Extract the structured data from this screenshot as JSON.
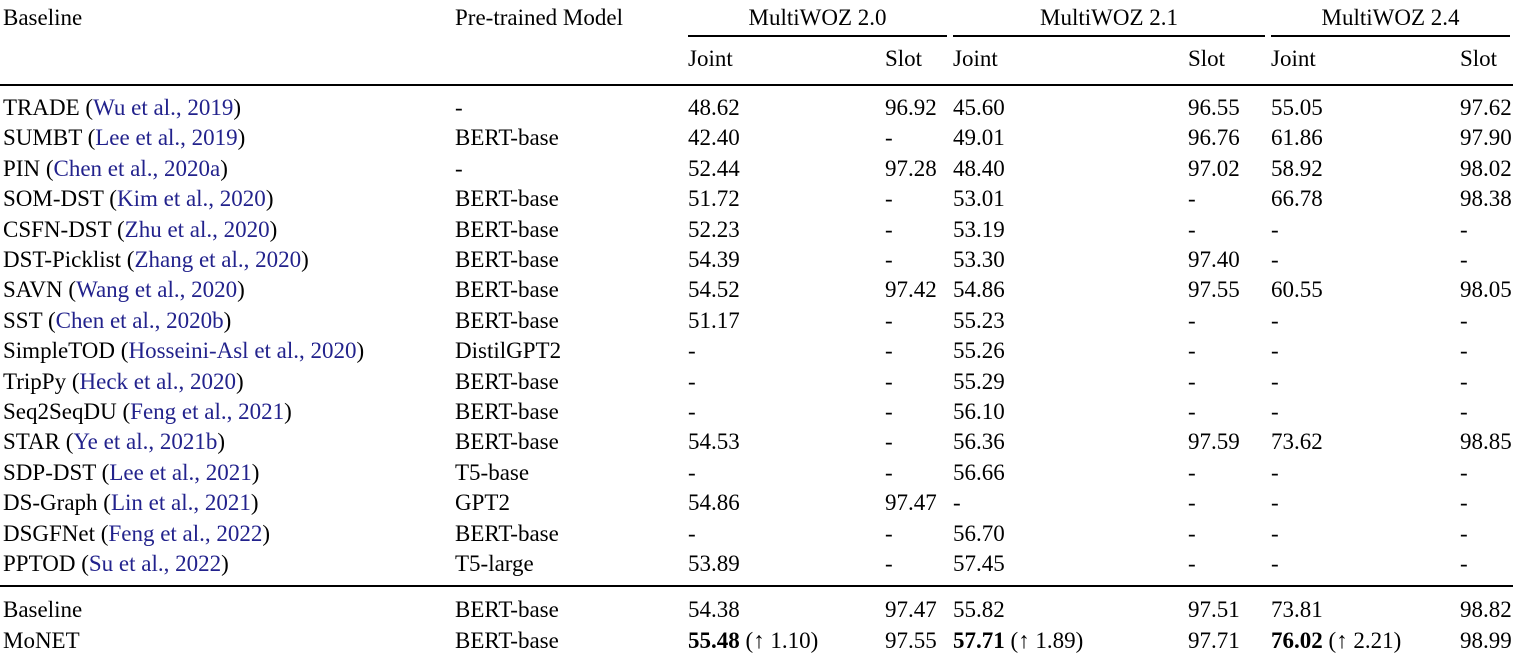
{
  "colors": {
    "citation_link": "#22228c",
    "text": "#000000",
    "rule": "#000000"
  },
  "table": {
    "headers": {
      "baseline": "Baseline",
      "pretrained": "Pre-trained Model",
      "joint": "Joint",
      "slot": "Slot"
    },
    "groups": [
      {
        "label": "MultiWOZ 2.0"
      },
      {
        "label": "MultiWOZ 2.1"
      },
      {
        "label": "MultiWOZ 2.4"
      }
    ],
    "rows": [
      {
        "name": "TRADE",
        "cite": "Wu et al., 2019",
        "pretrained": "-",
        "values": [
          "48.62",
          "96.92",
          "45.60",
          "96.55",
          "55.05",
          "97.62"
        ]
      },
      {
        "name": "SUMBT",
        "cite": "Lee et al., 2019",
        "pretrained": "BERT-base",
        "values": [
          "42.40",
          "-",
          "49.01",
          "96.76",
          "61.86",
          "97.90"
        ]
      },
      {
        "name": "PIN",
        "cite": "Chen et al., 2020a",
        "pretrained": "-",
        "values": [
          "52.44",
          "97.28",
          "48.40",
          "97.02",
          "58.92",
          "98.02"
        ]
      },
      {
        "name": "SOM-DST",
        "cite": "Kim et al., 2020",
        "pretrained": "BERT-base",
        "values": [
          "51.72",
          "-",
          "53.01",
          "-",
          "66.78",
          "98.38"
        ]
      },
      {
        "name": "CSFN-DST",
        "cite": "Zhu et al., 2020",
        "pretrained": "BERT-base",
        "values": [
          "52.23",
          "-",
          "53.19",
          "-",
          "-",
          "-"
        ]
      },
      {
        "name": "DST-Picklist",
        "cite": "Zhang et al., 2020",
        "pretrained": "BERT-base",
        "values": [
          "54.39",
          "-",
          "53.30",
          "97.40",
          "-",
          "-"
        ]
      },
      {
        "name": "SAVN",
        "cite": "Wang et al., 2020",
        "pretrained": "BERT-base",
        "values": [
          "54.52",
          "97.42",
          "54.86",
          "97.55",
          "60.55",
          "98.05"
        ]
      },
      {
        "name": "SST",
        "cite": "Chen et al., 2020b",
        "pretrained": "BERT-base",
        "values": [
          "51.17",
          "-",
          "55.23",
          "-",
          "-",
          "-"
        ]
      },
      {
        "name": "SimpleTOD",
        "cite": "Hosseini-Asl et al., 2020",
        "pretrained": "DistilGPT2",
        "values": [
          "-",
          "-",
          "55.26",
          "-",
          "-",
          "-"
        ]
      },
      {
        "name": "TripPy",
        "cite": "Heck et al., 2020",
        "pretrained": "BERT-base",
        "values": [
          "-",
          "-",
          "55.29",
          "-",
          "-",
          "-"
        ]
      },
      {
        "name": "Seq2SeqDU",
        "cite": "Feng et al., 2021",
        "pretrained": "BERT-base",
        "values": [
          "-",
          "-",
          "56.10",
          "-",
          "-",
          "-"
        ]
      },
      {
        "name": "STAR",
        "cite": "Ye et al., 2021b",
        "pretrained": "BERT-base",
        "values": [
          "54.53",
          "-",
          "56.36",
          "97.59",
          "73.62",
          "98.85"
        ]
      },
      {
        "name": "SDP-DST",
        "cite": "Lee et al., 2021",
        "pretrained": "T5-base",
        "values": [
          "-",
          "-",
          "56.66",
          "-",
          "-",
          "-"
        ]
      },
      {
        "name": "DS-Graph",
        "cite": "Lin et al., 2021",
        "pretrained": "GPT2",
        "values": [
          "54.86",
          "97.47",
          "-",
          "-",
          "-",
          "-"
        ]
      },
      {
        "name": "DSGFNet",
        "cite": "Feng et al., 2022",
        "pretrained": "BERT-base",
        "values": [
          "-",
          "-",
          "56.70",
          "-",
          "-",
          "-"
        ]
      },
      {
        "name": "PPTOD",
        "cite": "Su et al., 2022",
        "pretrained": "T5-large",
        "values": [
          "53.89",
          "-",
          "57.45",
          "-",
          "-",
          "-"
        ]
      }
    ],
    "summary": [
      {
        "name": "Baseline",
        "pretrained": "BERT-base",
        "values": [
          "54.38",
          "97.47",
          "55.82",
          "97.51",
          "73.81",
          "98.82"
        ]
      },
      {
        "name": "MoNET",
        "pretrained": "BERT-base",
        "values": [
          {
            "bold": "55.48",
            "note": "(↑ 1.10)"
          },
          "97.55",
          {
            "bold": "57.71",
            "note": "(↑ 1.89)"
          },
          "97.71",
          {
            "bold": "76.02",
            "note": "(↑ 2.21)"
          },
          "98.99"
        ]
      }
    ]
  }
}
